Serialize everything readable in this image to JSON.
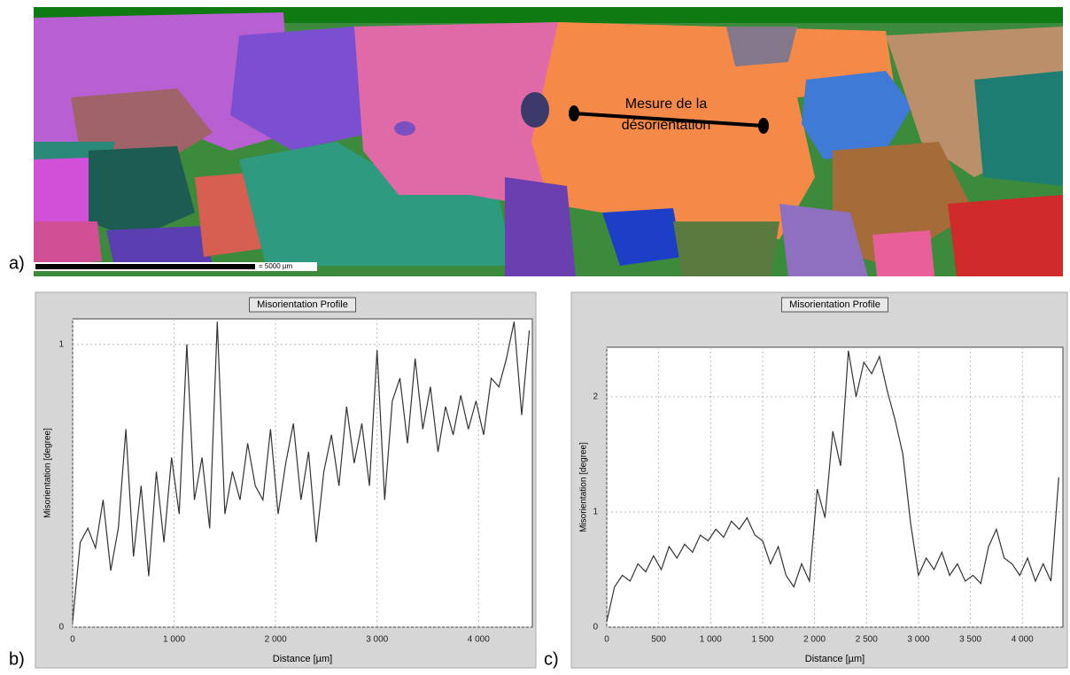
{
  "panels": {
    "a": "a)",
    "b": "b)",
    "c": "c)"
  },
  "map": {
    "annotation": [
      "Mesure de la",
      "désorientation"
    ],
    "scale_label": "= 5000 µm"
  },
  "chart_data": [
    {
      "type": "line",
      "title": "Misorientation Profile",
      "xlabel": "Distance [µm]",
      "ylabel": "Misorientation [degree]",
      "color": "#333333",
      "grid": true,
      "x": [
        0,
        75,
        150,
        225,
        300,
        375,
        450,
        525,
        600,
        675,
        750,
        825,
        900,
        975,
        1050,
        1125,
        1200,
        1275,
        1350,
        1425,
        1500,
        1575,
        1650,
        1725,
        1800,
        1875,
        1950,
        2025,
        2100,
        2175,
        2250,
        2325,
        2400,
        2475,
        2550,
        2625,
        2700,
        2775,
        2850,
        2925,
        3000,
        3075,
        3150,
        3225,
        3300,
        3375,
        3450,
        3525,
        3600,
        3675,
        3750,
        3825,
        3900,
        3975,
        4050,
        4125,
        4200,
        4275,
        4350,
        4425,
        4500
      ],
      "values": [
        0.02,
        0.3,
        0.35,
        0.28,
        0.45,
        0.2,
        0.35,
        0.7,
        0.25,
        0.5,
        0.18,
        0.55,
        0.3,
        0.6,
        0.4,
        1.0,
        0.45,
        0.6,
        0.35,
        1.08,
        0.4,
        0.55,
        0.45,
        0.65,
        0.5,
        0.45,
        0.7,
        0.4,
        0.58,
        0.72,
        0.45,
        0.62,
        0.3,
        0.55,
        0.68,
        0.5,
        0.78,
        0.58,
        0.72,
        0.5,
        0.98,
        0.45,
        0.8,
        0.88,
        0.65,
        0.95,
        0.7,
        0.85,
        0.62,
        0.78,
        0.68,
        0.82,
        0.7,
        0.8,
        0.68,
        0.88,
        0.85,
        0.95,
        1.08,
        0.75,
        1.05
      ],
      "xlim": [
        0,
        4530
      ],
      "ylim": [
        0,
        1.09
      ],
      "xticks": [
        0,
        {
          "value": 1000,
          "label": "1 000"
        },
        {
          "value": 2000,
          "label": "2 000"
        },
        {
          "value": 3000,
          "label": "3 000"
        },
        {
          "value": 4000,
          "label": "4 000"
        }
      ],
      "yticks": [
        0,
        1
      ]
    },
    {
      "type": "line",
      "title": "Misorientation Profile",
      "xlabel": "Distance [µm]",
      "ylabel": "Misorientation [degree]",
      "color": "#333333",
      "grid": true,
      "x": [
        0,
        75,
        150,
        225,
        300,
        375,
        450,
        525,
        600,
        675,
        750,
        825,
        900,
        975,
        1050,
        1125,
        1200,
        1275,
        1350,
        1425,
        1500,
        1575,
        1650,
        1725,
        1800,
        1875,
        1950,
        2025,
        2100,
        2175,
        2250,
        2325,
        2400,
        2475,
        2550,
        2625,
        2700,
        2775,
        2850,
        2925,
        3000,
        3075,
        3150,
        3225,
        3300,
        3375,
        3450,
        3525,
        3600,
        3675,
        3750,
        3825,
        3900,
        3975,
        4050,
        4125,
        4200,
        4275,
        4350
      ],
      "values": [
        0.05,
        0.35,
        0.45,
        0.4,
        0.55,
        0.48,
        0.62,
        0.5,
        0.7,
        0.6,
        0.72,
        0.65,
        0.8,
        0.75,
        0.85,
        0.78,
        0.92,
        0.85,
        0.95,
        0.8,
        0.75,
        0.55,
        0.7,
        0.45,
        0.35,
        0.55,
        0.4,
        1.2,
        0.95,
        1.7,
        1.4,
        2.4,
        2.0,
        2.3,
        2.2,
        2.35,
        2.05,
        1.8,
        1.5,
        0.9,
        0.45,
        0.6,
        0.5,
        0.65,
        0.45,
        0.55,
        0.4,
        0.45,
        0.38,
        0.7,
        0.85,
        0.6,
        0.55,
        0.45,
        0.6,
        0.4,
        0.55,
        0.4,
        1.3
      ],
      "xlim": [
        0,
        4390
      ],
      "ylim": [
        0,
        2.43
      ],
      "xticks": [
        0,
        500,
        {
          "value": 1000,
          "label": "1 000"
        },
        {
          "value": 1500,
          "label": "1 500"
        },
        {
          "value": 2000,
          "label": "2 000"
        },
        {
          "value": 2500,
          "label": "2 500"
        },
        {
          "value": 3000,
          "label": "3 000"
        },
        {
          "value": 3500,
          "label": "3 500"
        },
        {
          "value": 4000,
          "label": "4 000"
        }
      ],
      "yticks": [
        0,
        1,
        2
      ]
    }
  ]
}
